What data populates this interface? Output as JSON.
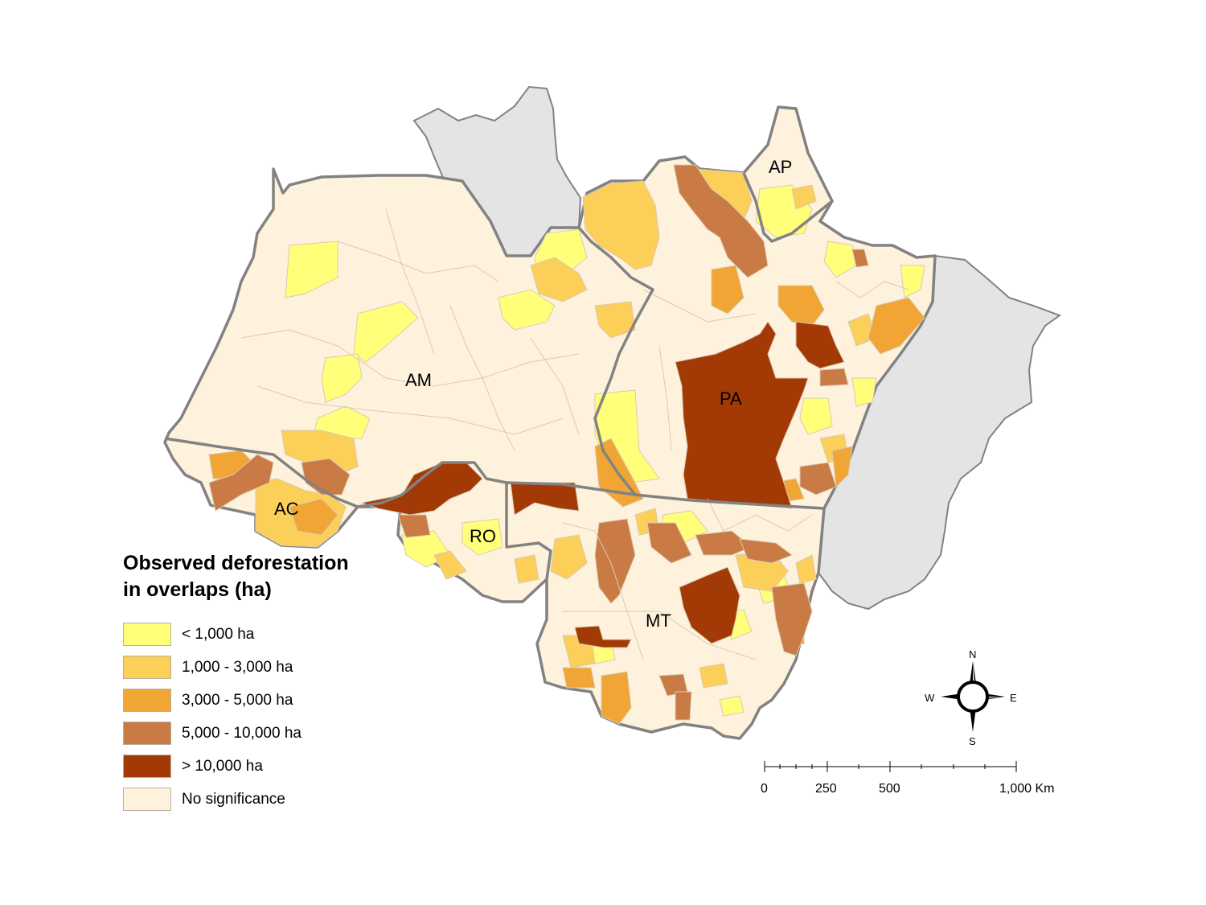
{
  "legend": {
    "title_line1": "Observed deforestation",
    "title_line2": "in overlaps (ha)",
    "classes": [
      {
        "label": "< 1,000 ha",
        "color": "#ffff7a"
      },
      {
        "label": "1,000 - 3,000 ha",
        "color": "#fbcf58"
      },
      {
        "label": "3,000 - 5,000 ha",
        "color": "#f0a535"
      },
      {
        "label": "5,000 - 10,000 ha",
        "color": "#c97a45"
      },
      {
        "label": "> 10,000 ha",
        "color": "#a33a05"
      },
      {
        "label": "No significance",
        "color": "#fef2dc"
      }
    ]
  },
  "states": {
    "am": "AM",
    "pa": "PA",
    "ap": "AP",
    "ac": "AC",
    "ro": "RO",
    "mt": "MT"
  },
  "colors": {
    "outside": "#e4e4e4",
    "border": "#828282",
    "municipal_line": "#d8cbb6"
  },
  "compass": {
    "n": "N",
    "s": "S",
    "e": "E",
    "w": "W"
  },
  "scalebar": {
    "ticks": [
      "0",
      "250",
      "500",
      "1,000 Km"
    ]
  }
}
